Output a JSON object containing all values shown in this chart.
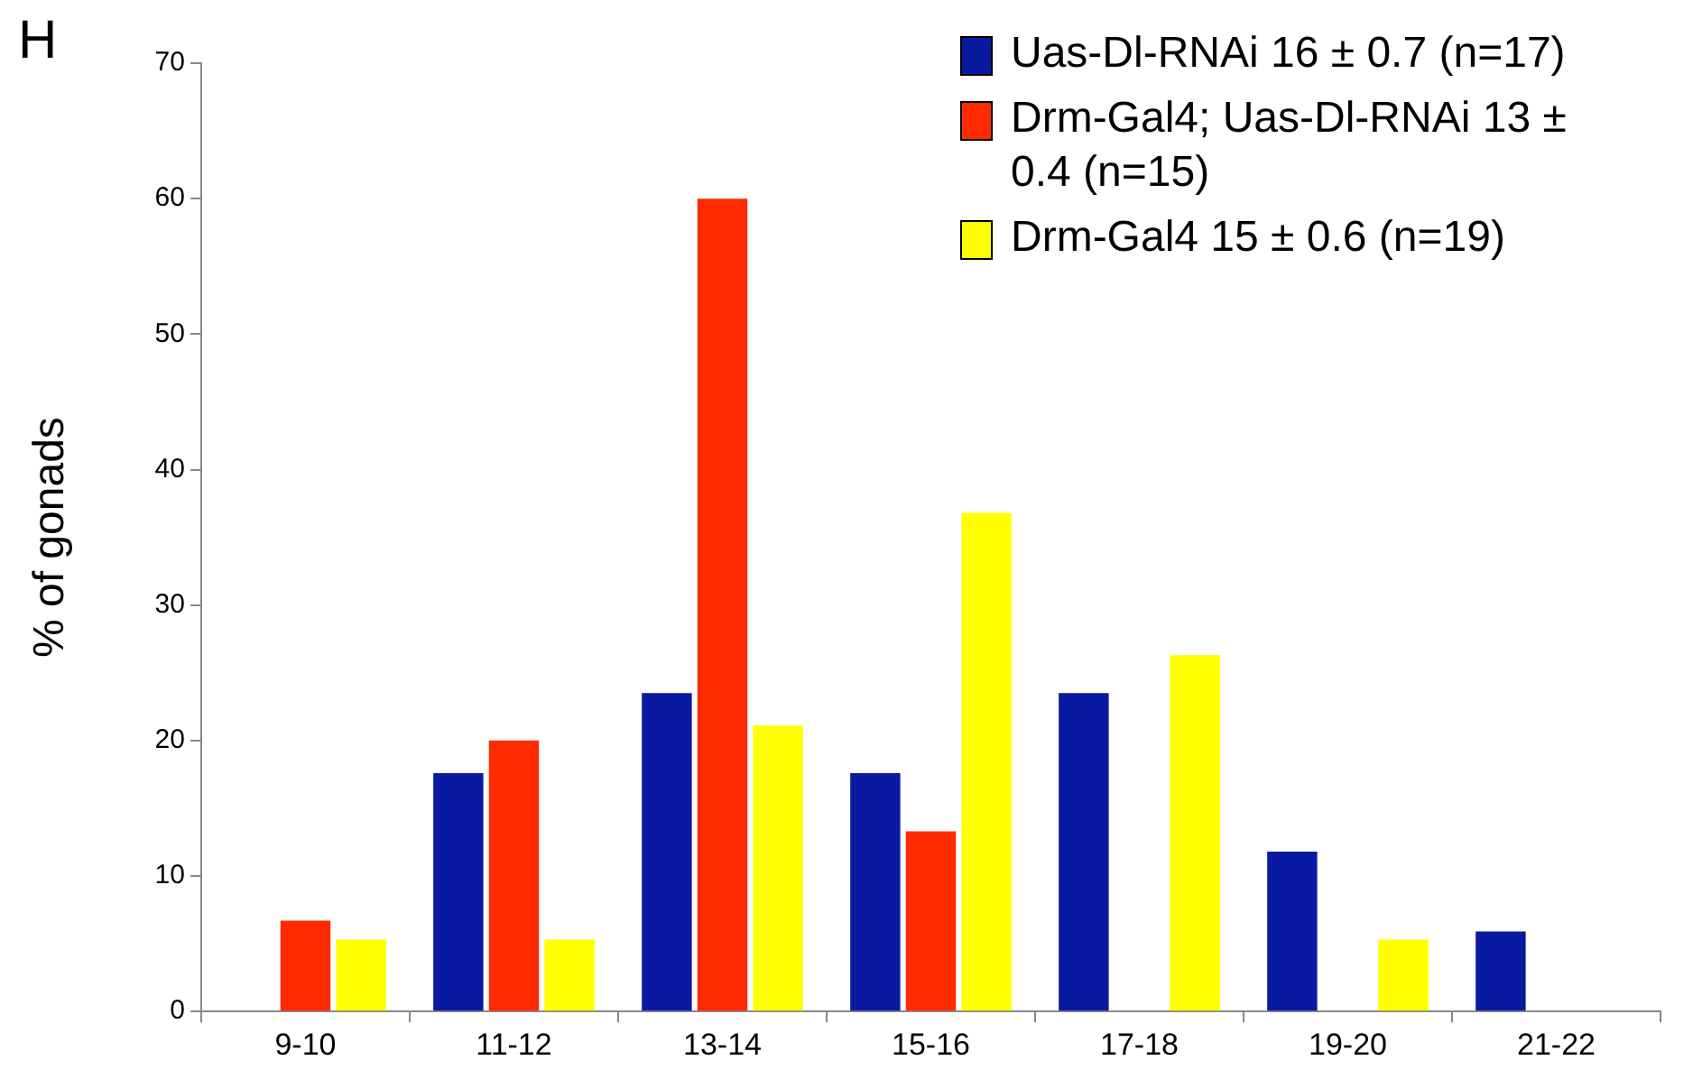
{
  "chart_data": {
    "type": "bar",
    "ylabel": "% of gonads",
    "annotations": [
      "H"
    ],
    "categories": [
      "9-10",
      "11-12",
      "13-14",
      "15-16",
      "17-18",
      "19-20",
      "21-22"
    ],
    "series": [
      {
        "name": "Uas-Dl-RNAi 16 ± 0.7 (n=17)",
        "color": "#0a1aa0",
        "values": [
          0,
          17.6,
          23.5,
          17.6,
          23.5,
          11.8,
          5.9
        ]
      },
      {
        "name": "Drm-Gal4; Uas-Dl-RNAi 13 ± 0.4 (n=15)",
        "color": "#ff2a00",
        "values": [
          6.7,
          20,
          60,
          13.3,
          0,
          0,
          0
        ]
      },
      {
        "name": "Drm-Gal4 15 ± 0.6 (n=19)",
        "color": "#ffff00",
        "values": [
          5.3,
          5.3,
          21.1,
          36.8,
          26.3,
          5.3,
          0
        ]
      }
    ],
    "ylim": [
      0,
      70
    ],
    "yticks": [
      0,
      10,
      20,
      30,
      40,
      50,
      60,
      70
    ],
    "grid": false,
    "legend": "top right"
  }
}
